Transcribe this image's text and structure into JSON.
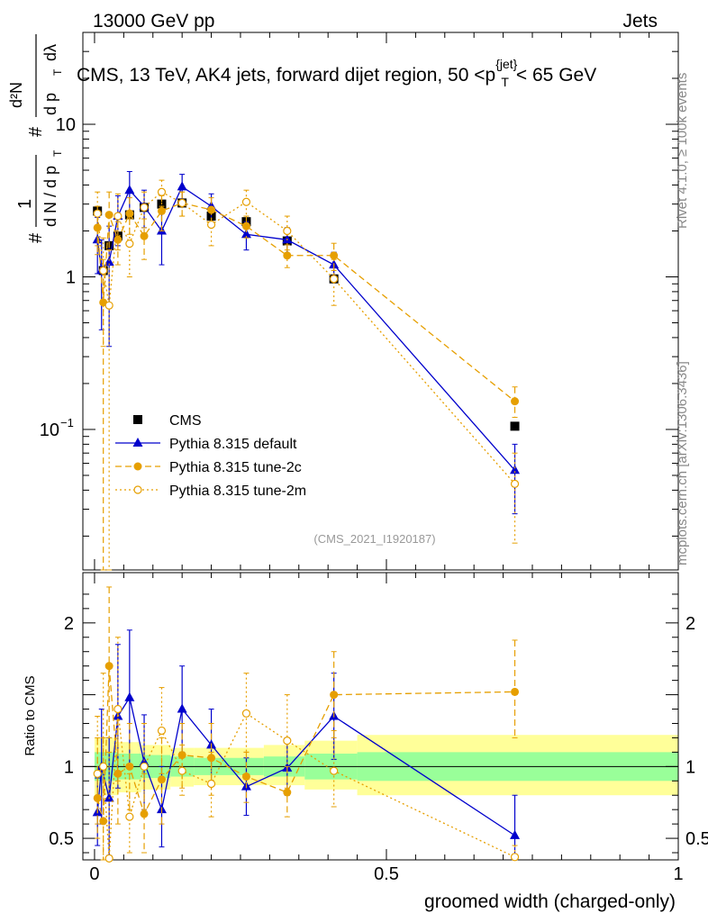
{
  "header": {
    "left": "13000 GeV pp",
    "right": "Jets",
    "title": "CMS, 13 TeV, AK4 jets, forward dijet region, 50 <p",
    "title_sup": "{jet}",
    "title_sub": "T",
    "title_end": "< 65 GeV",
    "watermark": "(CMS_2021_I1920187)",
    "side_rivet": "Rivet 4.1.0, ≥ 100k events",
    "side_mcplots": "mcplots.cern.ch [arXiv:1306.3436]"
  },
  "ylabel_top": "# 1/(dN/dp_T) # d²N/(dp_T dλ)",
  "ylabel_top_parts": {
    "hash": "#",
    "one": "1",
    "dN": "d N / d p",
    "T": "T",
    "d2N": "d²N",
    "dp": "d p",
    "dl": "dλ"
  },
  "ylabel_bottom": "Ratio to CMS",
  "xlabel": "groomed width (charged-only)",
  "colors": {
    "cms": "#000000",
    "default": "#0000cc",
    "tune2c": "#e69f00",
    "tune2m": "#e69f00",
    "band_inner": "#99ff99",
    "band_outer": "#ffff99"
  },
  "chart_data": {
    "type": "scatter",
    "xlim": [
      -0.02,
      1.0
    ],
    "main": {
      "yscale": "log",
      "ylim": [
        0.012,
        40
      ],
      "yticks": [
        {
          "v": 10,
          "label": "10"
        },
        {
          "v": 1,
          "label": "1"
        },
        {
          "v": 0.1,
          "label": "10",
          "sup": "−1"
        }
      ]
    },
    "ratio": {
      "ylim": [
        0.35,
        2.35
      ],
      "yticks": [
        {
          "v": 0.5,
          "label": "0.5"
        },
        {
          "v": 1,
          "label": "1"
        },
        {
          "v": 2,
          "label": "2"
        }
      ]
    },
    "xticks": [
      {
        "v": 0,
        "label": "0"
      },
      {
        "v": 0.5,
        "label": "0.5"
      },
      {
        "v": 1,
        "label": "1"
      }
    ],
    "legend": {
      "position": "lower-left",
      "entries": [
        "CMS",
        "Pythia 8.315 default",
        "Pythia 8.315 tune-2c",
        "Pythia 8.315 tune-2m"
      ]
    },
    "band": [
      {
        "x0": 0.0,
        "x1": 0.04,
        "in_lo": 0.9,
        "in_hi": 1.1,
        "out_lo": 0.8,
        "out_hi": 1.2
      },
      {
        "x0": 0.04,
        "x1": 0.08,
        "in_lo": 0.91,
        "in_hi": 1.09,
        "out_lo": 0.82,
        "out_hi": 1.17
      },
      {
        "x0": 0.08,
        "x1": 0.13,
        "in_lo": 0.92,
        "in_hi": 1.08,
        "out_lo": 0.84,
        "out_hi": 1.15
      },
      {
        "x0": 0.13,
        "x1": 0.17,
        "in_lo": 0.93,
        "in_hi": 1.07,
        "out_lo": 0.86,
        "out_hi": 1.13
      },
      {
        "x0": 0.17,
        "x1": 0.29,
        "in_lo": 0.94,
        "in_hi": 1.06,
        "out_lo": 0.87,
        "out_hi": 1.13
      },
      {
        "x0": 0.29,
        "x1": 0.36,
        "in_lo": 0.93,
        "in_hi": 1.07,
        "out_lo": 0.87,
        "out_hi": 1.15
      },
      {
        "x0": 0.36,
        "x1": 0.45,
        "in_lo": 0.91,
        "in_hi": 1.09,
        "out_lo": 0.84,
        "out_hi": 1.18
      },
      {
        "x0": 0.45,
        "x1": 1.0,
        "in_lo": 0.9,
        "in_hi": 1.1,
        "out_lo": 0.8,
        "out_hi": 1.22
      }
    ],
    "series": [
      {
        "name": "CMS",
        "key": "cms",
        "marker": "square",
        "x": [
          0.005,
          0.015,
          0.025,
          0.04,
          0.06,
          0.085,
          0.115,
          0.15,
          0.2,
          0.26,
          0.33,
          0.41,
          0.72
        ],
        "y": [
          2.7,
          1.1,
          1.6,
          1.85,
          2.55,
          2.85,
          3.0,
          3.05,
          2.5,
          2.3,
          1.72,
          0.97,
          0.105
        ],
        "ratio": [
          1,
          1,
          1,
          1,
          1,
          1,
          1,
          1,
          1,
          1,
          1,
          1,
          1
        ]
      },
      {
        "name": "Pythia 8.315 default",
        "key": "default",
        "marker": "triangle",
        "dash": "",
        "x": [
          0.005,
          0.012,
          0.025,
          0.04,
          0.06,
          0.085,
          0.115,
          0.15,
          0.2,
          0.26,
          0.33,
          0.41,
          0.72
        ],
        "y": [
          1.75,
          1.1,
          1.25,
          2.5,
          3.7,
          2.9,
          2.0,
          3.9,
          2.9,
          1.9,
          1.75,
          1.2,
          0.054
        ],
        "ylo": [
          1.05,
          0.45,
          0.35,
          1.6,
          2.6,
          2.1,
          1.2,
          3.1,
          2.3,
          1.5,
          1.4,
          0.95,
          0.028
        ],
        "yhi": [
          2.45,
          1.75,
          2.15,
          3.4,
          4.9,
          3.7,
          2.8,
          4.7,
          3.5,
          2.3,
          2.1,
          1.45,
          0.08
        ],
        "ratio": [
          0.68,
          1.0,
          0.78,
          1.35,
          1.48,
          1.03,
          0.7,
          1.4,
          1.15,
          0.86,
          0.99,
          1.35,
          0.52
        ],
        "rlo": [
          0.45,
          0.6,
          0.38,
          0.85,
          1.0,
          0.7,
          0.44,
          1.1,
          0.9,
          0.66,
          0.8,
          1.05,
          0.34
        ],
        "rhi": [
          0.92,
          1.4,
          1.2,
          1.85,
          1.95,
          1.36,
          1.0,
          1.7,
          1.4,
          1.06,
          1.2,
          1.65,
          0.8
        ]
      },
      {
        "name": "Pythia 8.315 tune-2c",
        "key": "tune2c",
        "marker": "circle",
        "dash": "7,4",
        "x": [
          0.005,
          0.015,
          0.025,
          0.04,
          0.06,
          0.085,
          0.115,
          0.15,
          0.2,
          0.26,
          0.33,
          0.41,
          0.72
        ],
        "y": [
          2.1,
          0.68,
          2.55,
          1.75,
          2.6,
          1.85,
          2.7,
          3.05,
          2.75,
          2.15,
          1.38,
          1.38,
          0.153
        ],
        "ylo": [
          1.4,
          0.012,
          1.5,
          1.2,
          1.9,
          1.3,
          2.0,
          2.5,
          2.2,
          1.8,
          1.15,
          1.1,
          0.12
        ],
        "yhi": [
          2.9,
          1.3,
          3.6,
          2.3,
          3.3,
          2.4,
          3.4,
          3.6,
          3.3,
          2.5,
          1.62,
          1.66,
          0.19
        ],
        "ratio": [
          0.78,
          0.62,
          1.7,
          0.95,
          1.0,
          0.67,
          0.91,
          1.08,
          1.06,
          0.93,
          0.82,
          1.5,
          1.52
        ],
        "rlo": [
          0.5,
          0.2,
          1.2,
          0.6,
          0.7,
          0.4,
          0.6,
          0.85,
          0.8,
          0.75,
          0.65,
          1.2,
          1.2
        ],
        "rhi": [
          1.2,
          1.2,
          2.25,
          1.4,
          1.3,
          0.95,
          1.2,
          1.3,
          1.3,
          1.1,
          1.0,
          1.8,
          1.88
        ]
      },
      {
        "name": "Pythia 8.315 tune-2m",
        "key": "tune2m",
        "marker": "circle-open",
        "dash": "2,3",
        "x": [
          0.005,
          0.015,
          0.025,
          0.04,
          0.06,
          0.085,
          0.115,
          0.15,
          0.2,
          0.26,
          0.33,
          0.41,
          0.72
        ],
        "y": [
          2.6,
          1.1,
          0.65,
          2.5,
          1.65,
          2.85,
          3.6,
          3.05,
          2.2,
          3.1,
          2.0,
          0.97,
          0.044
        ],
        "ylo": [
          1.6,
          0.35,
          0.012,
          1.5,
          1.0,
          2.1,
          2.9,
          2.5,
          1.6,
          2.5,
          1.5,
          0.65,
          0.018
        ],
        "yhi": [
          3.6,
          1.8,
          1.5,
          3.5,
          2.4,
          3.6,
          4.3,
          3.6,
          2.8,
          3.7,
          2.5,
          1.3,
          0.07
        ],
        "ratio": [
          0.95,
          1.0,
          0.36,
          1.4,
          0.65,
          1.0,
          1.25,
          0.97,
          0.88,
          1.37,
          1.18,
          0.97,
          0.37
        ],
        "rlo": [
          0.6,
          0.35,
          0.3,
          0.9,
          0.4,
          0.7,
          0.95,
          0.8,
          0.65,
          1.1,
          0.85,
          0.72,
          0.3
        ],
        "rhi": [
          1.35,
          1.65,
          1.1,
          1.9,
          0.95,
          1.3,
          1.55,
          1.15,
          1.1,
          1.65,
          1.5,
          1.25,
          0.45
        ]
      }
    ]
  }
}
